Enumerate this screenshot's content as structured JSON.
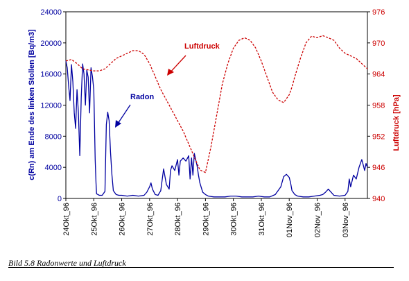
{
  "figure": {
    "caption": "Bild 5.8  Radonwerte und Luftdruck"
  },
  "chart_data": {
    "type": "line",
    "x_categories": [
      "24Okt_96",
      "25Okt_96",
      "26Okt_96",
      "27Okt_96",
      "28Okt_96",
      "29Okt_96",
      "30Okt_96",
      "31Okt_96",
      "01Nov_96",
      "02Nov_96",
      "03Nov_96"
    ],
    "x_range": [
      0,
      10.8
    ],
    "axes": {
      "y_left": {
        "label": "c(Rn) am Ende des linken Stollen [Bq/m3]",
        "min": 0,
        "max": 24000,
        "ticks": [
          0,
          4000,
          8000,
          12000,
          16000,
          20000,
          24000
        ],
        "tick_labels": [
          "0",
          "4000",
          "8000",
          "12000",
          "16000",
          "20000",
          "24000"
        ],
        "color": "#0000a0"
      },
      "y_right": {
        "label": "Luftdruck [hPa]",
        "min": 940,
        "max": 976,
        "ticks": [
          940,
          946,
          952,
          958,
          964,
          970,
          976
        ],
        "tick_labels": [
          "940",
          "946",
          "952",
          "958",
          "964",
          "970",
          "976"
        ],
        "color": "#cc0000"
      }
    },
    "series": [
      {
        "name": "Radon",
        "axis": "left",
        "color": "#0000a0",
        "style": "solid",
        "x": [
          0,
          0.05,
          0.1,
          0.15,
          0.2,
          0.25,
          0.3,
          0.35,
          0.4,
          0.45,
          0.5,
          0.55,
          0.6,
          0.65,
          0.7,
          0.75,
          0.8,
          0.85,
          0.9,
          0.95,
          1.0,
          1.05,
          1.08,
          1.1,
          1.2,
          1.3,
          1.4,
          1.45,
          1.5,
          1.55,
          1.6,
          1.65,
          1.7,
          1.8,
          1.9,
          2.0,
          2.2,
          2.4,
          2.6,
          2.8,
          2.9,
          3.0,
          3.05,
          3.1,
          3.2,
          3.3,
          3.4,
          3.5,
          3.6,
          3.7,
          3.75,
          3.8,
          3.9,
          4.0,
          4.05,
          4.1,
          4.2,
          4.3,
          4.4,
          4.45,
          4.5,
          4.55,
          4.6,
          4.65,
          4.7,
          4.75,
          4.8,
          4.9,
          5.0,
          5.1,
          5.3,
          5.5,
          5.7,
          5.9,
          6.1,
          6.3,
          6.5,
          6.7,
          6.9,
          7.1,
          7.3,
          7.5,
          7.7,
          7.8,
          7.9,
          8.0,
          8.05,
          8.1,
          8.2,
          8.3,
          8.5,
          8.7,
          8.9,
          9.1,
          9.2,
          9.3,
          9.4,
          9.6,
          9.8,
          10.0,
          10.1,
          10.15,
          10.2,
          10.25,
          10.3,
          10.4,
          10.5,
          10.6,
          10.65,
          10.7,
          10.75,
          10.8
        ],
        "values": [
          17700,
          16800,
          14500,
          12600,
          17200,
          15000,
          11000,
          9000,
          14000,
          11000,
          5500,
          13000,
          17300,
          16000,
          12000,
          16500,
          15600,
          11000,
          16800,
          15700,
          14000,
          5000,
          2000,
          600,
          400,
          400,
          900,
          9500,
          11100,
          10000,
          6000,
          3000,
          1000,
          500,
          400,
          400,
          300,
          400,
          300,
          400,
          800,
          1500,
          2000,
          1200,
          500,
          400,
          1000,
          3800,
          1800,
          1200,
          3600,
          4200,
          3600,
          5000,
          3000,
          4800,
          5200,
          4800,
          5500,
          2500,
          5200,
          3000,
          5800,
          5000,
          4200,
          3000,
          2000,
          800,
          500,
          300,
          200,
          200,
          200,
          300,
          300,
          200,
          200,
          200,
          300,
          200,
          200,
          500,
          1500,
          2800,
          3100,
          2700,
          2000,
          1000,
          500,
          300,
          200,
          200,
          300,
          400,
          500,
          800,
          1200,
          400,
          300,
          400,
          900,
          2500,
          1500,
          2200,
          3000,
          2500,
          4000,
          5000,
          4300,
          3600,
          4500,
          4000
        ],
        "annotation": "Radon"
      },
      {
        "name": "Luftdruck",
        "axis": "right",
        "color": "#cc0000",
        "style": "dashed",
        "x": [
          0,
          0.2,
          0.4,
          0.6,
          0.8,
          1.0,
          1.2,
          1.4,
          1.6,
          1.8,
          2.0,
          2.2,
          2.4,
          2.6,
          2.8,
          3.0,
          3.2,
          3.4,
          3.6,
          3.8,
          4.0,
          4.2,
          4.4,
          4.6,
          4.8,
          5.0,
          5.2,
          5.4,
          5.6,
          5.8,
          6.0,
          6.2,
          6.4,
          6.6,
          6.8,
          7.0,
          7.2,
          7.4,
          7.6,
          7.8,
          8.0,
          8.1,
          8.2,
          8.4,
          8.6,
          8.8,
          9.0,
          9.2,
          9.4,
          9.6,
          9.8,
          10.0,
          10.2,
          10.4,
          10.6,
          10.8
        ],
        "values": [
          966.5,
          966.8,
          966.0,
          965.0,
          964.8,
          964.6,
          964.6,
          965.0,
          966.0,
          967.0,
          967.5,
          968.0,
          968.5,
          968.5,
          967.8,
          966.0,
          963.5,
          961.0,
          959.0,
          957.0,
          955.0,
          953.0,
          950.5,
          948.0,
          945.5,
          945.0,
          950.0,
          956.0,
          962.0,
          966.0,
          969.0,
          970.5,
          971.0,
          970.5,
          969.0,
          966.5,
          963.5,
          960.5,
          959.0,
          958.5,
          960.0,
          961.5,
          963.5,
          967.0,
          970.0,
          971.3,
          971.0,
          971.4,
          971.0,
          970.5,
          969.0,
          968.0,
          967.5,
          967.0,
          966.0,
          965.0
        ],
        "annotation": "Luftdruck"
      }
    ],
    "grid": false,
    "legend": "none"
  }
}
